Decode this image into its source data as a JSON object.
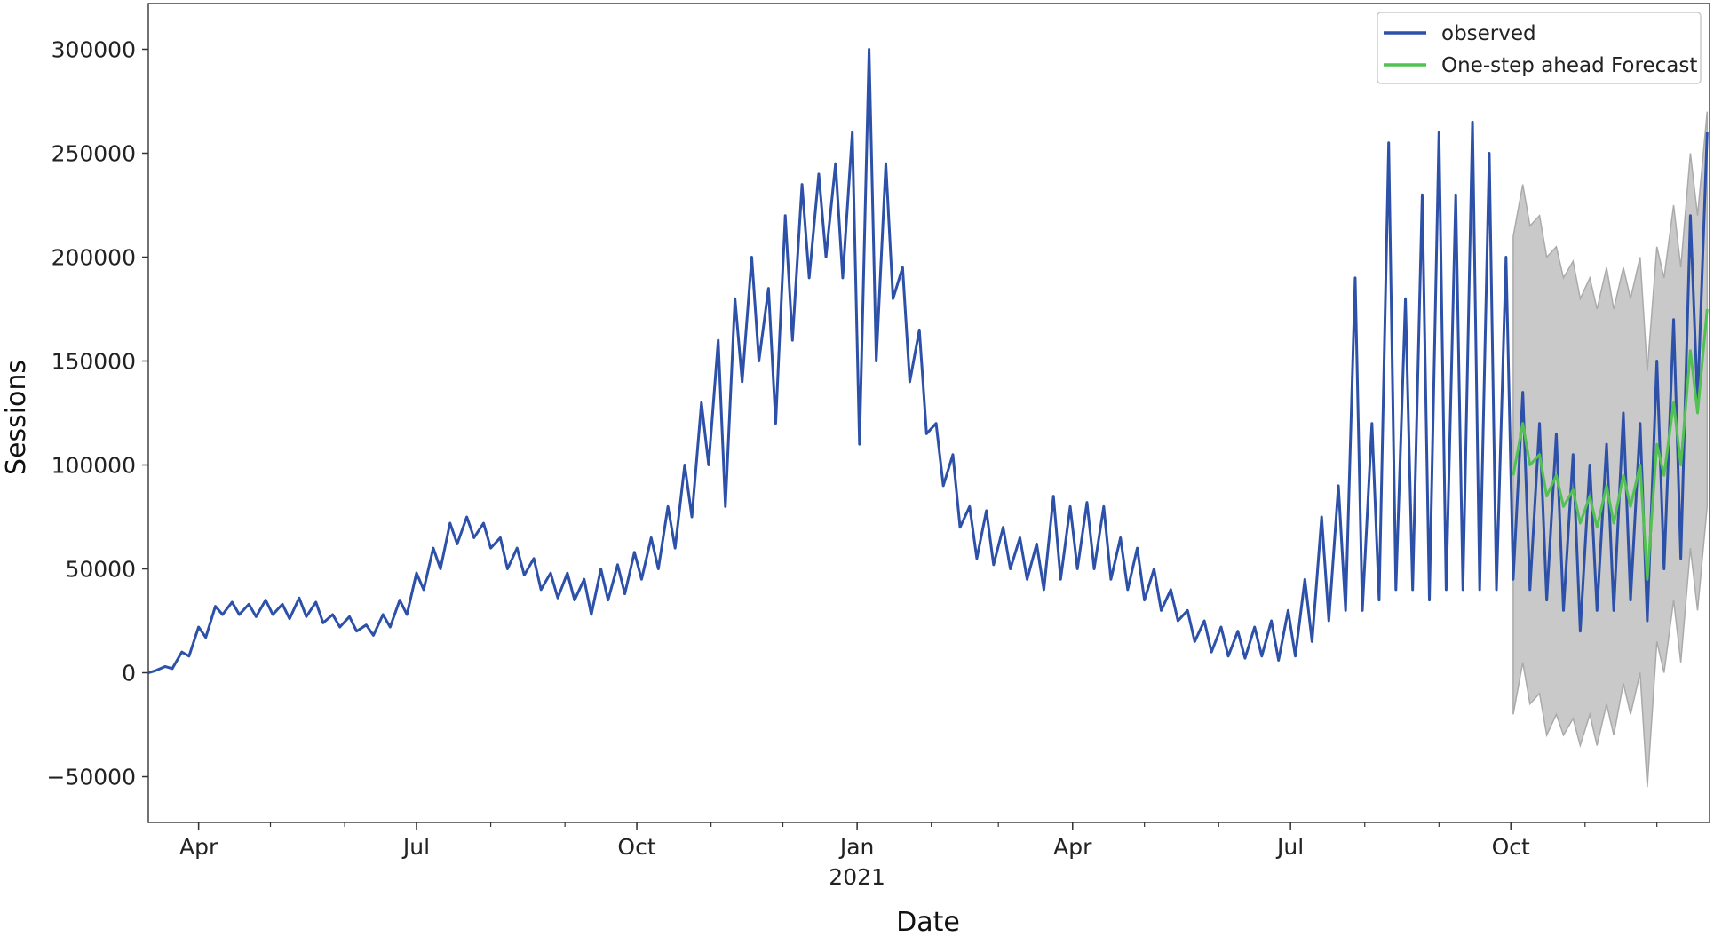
{
  "chart_data": {
    "type": "line",
    "title": "",
    "xlabel": "Date",
    "ylabel": "Sessions",
    "xlim": [
      "2020-03-11",
      "2021-12-23"
    ],
    "ylim": [
      -72000,
      322000
    ],
    "yticks": [
      -50000,
      0,
      50000,
      100000,
      150000,
      200000,
      250000,
      300000
    ],
    "ytick_labels": [
      "−50000",
      "0",
      "50000",
      "100000",
      "150000",
      "200000",
      "250000",
      "300000"
    ],
    "xticks": [
      {
        "date": "2020-04-01",
        "label": "Apr"
      },
      {
        "date": "2020-07-01",
        "label": "Jul"
      },
      {
        "date": "2020-10-01",
        "label": "Oct"
      },
      {
        "date": "2021-01-01",
        "label": "Jan",
        "sublabel": "2021"
      },
      {
        "date": "2021-04-01",
        "label": "Apr"
      },
      {
        "date": "2021-07-01",
        "label": "Jul"
      },
      {
        "date": "2021-10-01",
        "label": "Oct"
      }
    ],
    "grid": false,
    "legend": {
      "placement": "top-right",
      "entries": [
        "observed",
        "One-step ahead Forecast"
      ]
    },
    "colors": {
      "observed": "#2d50a8",
      "forecast": "#52c152",
      "ci_fill": "#c9c9c9",
      "ci_edge": "#aaaaaa"
    },
    "series": [
      {
        "name": "observed",
        "points": [
          [
            "2020-03-11",
            0
          ],
          [
            "2020-03-14",
            1000
          ],
          [
            "2020-03-18",
            3000
          ],
          [
            "2020-03-21",
            2000
          ],
          [
            "2020-03-25",
            10000
          ],
          [
            "2020-03-28",
            8000
          ],
          [
            "2020-04-01",
            22000
          ],
          [
            "2020-04-04",
            17000
          ],
          [
            "2020-04-08",
            32000
          ],
          [
            "2020-04-11",
            28000
          ],
          [
            "2020-04-15",
            34000
          ],
          [
            "2020-04-18",
            28000
          ],
          [
            "2020-04-22",
            33000
          ],
          [
            "2020-04-25",
            27000
          ],
          [
            "2020-04-29",
            35000
          ],
          [
            "2020-05-02",
            28000
          ],
          [
            "2020-05-06",
            33000
          ],
          [
            "2020-05-09",
            26000
          ],
          [
            "2020-05-13",
            36000
          ],
          [
            "2020-05-16",
            27000
          ],
          [
            "2020-05-20",
            34000
          ],
          [
            "2020-05-23",
            24000
          ],
          [
            "2020-05-27",
            28000
          ],
          [
            "2020-05-30",
            22000
          ],
          [
            "2020-06-03",
            27000
          ],
          [
            "2020-06-06",
            20000
          ],
          [
            "2020-06-10",
            23000
          ],
          [
            "2020-06-13",
            18000
          ],
          [
            "2020-06-17",
            28000
          ],
          [
            "2020-06-20",
            22000
          ],
          [
            "2020-06-24",
            35000
          ],
          [
            "2020-06-27",
            28000
          ],
          [
            "2020-07-01",
            48000
          ],
          [
            "2020-07-04",
            40000
          ],
          [
            "2020-07-08",
            60000
          ],
          [
            "2020-07-11",
            50000
          ],
          [
            "2020-07-15",
            72000
          ],
          [
            "2020-07-18",
            62000
          ],
          [
            "2020-07-22",
            75000
          ],
          [
            "2020-07-25",
            65000
          ],
          [
            "2020-07-29",
            72000
          ],
          [
            "2020-08-01",
            60000
          ],
          [
            "2020-08-05",
            65000
          ],
          [
            "2020-08-08",
            50000
          ],
          [
            "2020-08-12",
            60000
          ],
          [
            "2020-08-15",
            47000
          ],
          [
            "2020-08-19",
            55000
          ],
          [
            "2020-08-22",
            40000
          ],
          [
            "2020-08-26",
            48000
          ],
          [
            "2020-08-29",
            36000
          ],
          [
            "2020-09-02",
            48000
          ],
          [
            "2020-09-05",
            35000
          ],
          [
            "2020-09-09",
            45000
          ],
          [
            "2020-09-12",
            28000
          ],
          [
            "2020-09-16",
            50000
          ],
          [
            "2020-09-19",
            35000
          ],
          [
            "2020-09-23",
            52000
          ],
          [
            "2020-09-26",
            38000
          ],
          [
            "2020-09-30",
            58000
          ],
          [
            "2020-10-03",
            45000
          ],
          [
            "2020-10-07",
            65000
          ],
          [
            "2020-10-10",
            50000
          ],
          [
            "2020-10-14",
            80000
          ],
          [
            "2020-10-17",
            60000
          ],
          [
            "2020-10-21",
            100000
          ],
          [
            "2020-10-24",
            75000
          ],
          [
            "2020-10-28",
            130000
          ],
          [
            "2020-10-31",
            100000
          ],
          [
            "2020-11-04",
            160000
          ],
          [
            "2020-11-07",
            80000
          ],
          [
            "2020-11-11",
            180000
          ],
          [
            "2020-11-14",
            140000
          ],
          [
            "2020-11-18",
            200000
          ],
          [
            "2020-11-21",
            150000
          ],
          [
            "2020-11-25",
            185000
          ],
          [
            "2020-11-28",
            120000
          ],
          [
            "2020-12-02",
            220000
          ],
          [
            "2020-12-05",
            160000
          ],
          [
            "2020-12-09",
            235000
          ],
          [
            "2020-12-12",
            190000
          ],
          [
            "2020-12-16",
            240000
          ],
          [
            "2020-12-19",
            200000
          ],
          [
            "2020-12-23",
            245000
          ],
          [
            "2020-12-26",
            190000
          ],
          [
            "2020-12-30",
            260000
          ],
          [
            "2021-01-02",
            110000
          ],
          [
            "2021-01-06",
            300000
          ],
          [
            "2021-01-09",
            150000
          ],
          [
            "2021-01-13",
            245000
          ],
          [
            "2021-01-16",
            180000
          ],
          [
            "2021-01-20",
            195000
          ],
          [
            "2021-01-23",
            140000
          ],
          [
            "2021-01-27",
            165000
          ],
          [
            "2021-01-30",
            115000
          ],
          [
            "2021-02-03",
            120000
          ],
          [
            "2021-02-06",
            90000
          ],
          [
            "2021-02-10",
            105000
          ],
          [
            "2021-02-13",
            70000
          ],
          [
            "2021-02-17",
            80000
          ],
          [
            "2021-02-20",
            55000
          ],
          [
            "2021-02-24",
            78000
          ],
          [
            "2021-02-27",
            52000
          ],
          [
            "2021-03-03",
            70000
          ],
          [
            "2021-03-06",
            50000
          ],
          [
            "2021-03-10",
            65000
          ],
          [
            "2021-03-13",
            45000
          ],
          [
            "2021-03-17",
            62000
          ],
          [
            "2021-03-20",
            40000
          ],
          [
            "2021-03-24",
            85000
          ],
          [
            "2021-03-27",
            45000
          ],
          [
            "2021-03-31",
            80000
          ],
          [
            "2021-04-03",
            50000
          ],
          [
            "2021-04-07",
            82000
          ],
          [
            "2021-04-10",
            50000
          ],
          [
            "2021-04-14",
            80000
          ],
          [
            "2021-04-17",
            45000
          ],
          [
            "2021-04-21",
            65000
          ],
          [
            "2021-04-24",
            40000
          ],
          [
            "2021-04-28",
            60000
          ],
          [
            "2021-05-01",
            35000
          ],
          [
            "2021-05-05",
            50000
          ],
          [
            "2021-05-08",
            30000
          ],
          [
            "2021-05-12",
            40000
          ],
          [
            "2021-05-15",
            25000
          ],
          [
            "2021-05-19",
            30000
          ],
          [
            "2021-05-22",
            15000
          ],
          [
            "2021-05-26",
            25000
          ],
          [
            "2021-05-29",
            10000
          ],
          [
            "2021-06-02",
            22000
          ],
          [
            "2021-06-05",
            8000
          ],
          [
            "2021-06-09",
            20000
          ],
          [
            "2021-06-12",
            7000
          ],
          [
            "2021-06-16",
            22000
          ],
          [
            "2021-06-19",
            8000
          ],
          [
            "2021-06-23",
            25000
          ],
          [
            "2021-06-26",
            6000
          ],
          [
            "2021-06-30",
            30000
          ],
          [
            "2021-07-03",
            8000
          ],
          [
            "2021-07-07",
            45000
          ],
          [
            "2021-07-10",
            15000
          ],
          [
            "2021-07-14",
            75000
          ],
          [
            "2021-07-17",
            25000
          ],
          [
            "2021-07-21",
            90000
          ],
          [
            "2021-07-24",
            30000
          ],
          [
            "2021-07-28",
            190000
          ],
          [
            "2021-07-31",
            30000
          ],
          [
            "2021-08-04",
            120000
          ],
          [
            "2021-08-07",
            35000
          ],
          [
            "2021-08-11",
            255000
          ],
          [
            "2021-08-14",
            40000
          ],
          [
            "2021-08-18",
            180000
          ],
          [
            "2021-08-21",
            40000
          ],
          [
            "2021-08-25",
            230000
          ],
          [
            "2021-08-28",
            35000
          ],
          [
            "2021-09-01",
            260000
          ],
          [
            "2021-09-04",
            40000
          ],
          [
            "2021-09-08",
            230000
          ],
          [
            "2021-09-11",
            40000
          ],
          [
            "2021-09-15",
            265000
          ],
          [
            "2021-09-18",
            40000
          ],
          [
            "2021-09-22",
            250000
          ],
          [
            "2021-09-25",
            40000
          ],
          [
            "2021-09-29",
            200000
          ],
          [
            "2021-10-02",
            45000
          ],
          [
            "2021-10-06",
            135000
          ],
          [
            "2021-10-09",
            40000
          ],
          [
            "2021-10-13",
            120000
          ],
          [
            "2021-10-16",
            35000
          ],
          [
            "2021-10-20",
            115000
          ],
          [
            "2021-10-23",
            30000
          ],
          [
            "2021-10-27",
            105000
          ],
          [
            "2021-10-30",
            20000
          ],
          [
            "2021-11-03",
            100000
          ],
          [
            "2021-11-06",
            30000
          ],
          [
            "2021-11-10",
            110000
          ],
          [
            "2021-11-13",
            30000
          ],
          [
            "2021-11-17",
            125000
          ],
          [
            "2021-11-20",
            35000
          ],
          [
            "2021-11-24",
            120000
          ],
          [
            "2021-11-27",
            25000
          ],
          [
            "2021-12-01",
            150000
          ],
          [
            "2021-12-04",
            50000
          ],
          [
            "2021-12-08",
            170000
          ],
          [
            "2021-12-11",
            55000
          ],
          [
            "2021-12-15",
            220000
          ],
          [
            "2021-12-18",
            130000
          ],
          [
            "2021-12-22",
            260000
          ]
        ]
      },
      {
        "name": "One-step ahead Forecast",
        "points": [
          [
            "2021-10-02",
            95000,
            -20000,
            210000
          ],
          [
            "2021-10-06",
            120000,
            5000,
            235000
          ],
          [
            "2021-10-09",
            100000,
            -15000,
            215000
          ],
          [
            "2021-10-13",
            105000,
            -10000,
            220000
          ],
          [
            "2021-10-16",
            85000,
            -30000,
            200000
          ],
          [
            "2021-10-20",
            95000,
            -20000,
            205000
          ],
          [
            "2021-10-23",
            80000,
            -30000,
            190000
          ],
          [
            "2021-10-27",
            88000,
            -22000,
            198000
          ],
          [
            "2021-10-30",
            72000,
            -35000,
            180000
          ],
          [
            "2021-11-03",
            85000,
            -20000,
            190000
          ],
          [
            "2021-11-06",
            70000,
            -35000,
            175000
          ],
          [
            "2021-11-10",
            90000,
            -15000,
            195000
          ],
          [
            "2021-11-13",
            72000,
            -30000,
            175000
          ],
          [
            "2021-11-17",
            95000,
            -5000,
            195000
          ],
          [
            "2021-11-20",
            80000,
            -20000,
            180000
          ],
          [
            "2021-11-24",
            100000,
            0,
            200000
          ],
          [
            "2021-11-27",
            45000,
            -55000,
            145000
          ],
          [
            "2021-12-01",
            110000,
            15000,
            205000
          ],
          [
            "2021-12-04",
            95000,
            0,
            190000
          ],
          [
            "2021-12-08",
            130000,
            35000,
            225000
          ],
          [
            "2021-12-11",
            100000,
            5000,
            195000
          ],
          [
            "2021-12-15",
            155000,
            60000,
            250000
          ],
          [
            "2021-12-18",
            125000,
            30000,
            220000
          ],
          [
            "2021-12-22",
            175000,
            80000,
            270000
          ]
        ]
      }
    ]
  }
}
